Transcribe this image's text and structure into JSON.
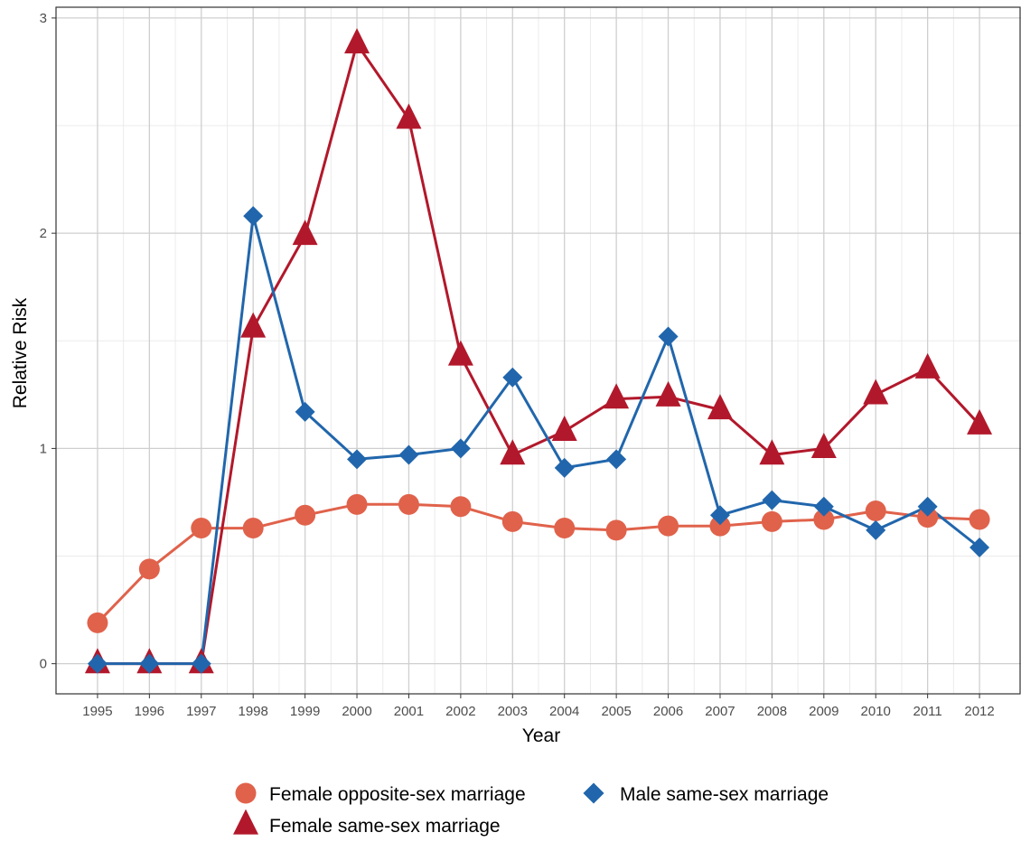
{
  "chart_data": {
    "type": "line",
    "xlabel": "Year",
    "ylabel": "Relative Risk",
    "x": [
      1995,
      1996,
      1997,
      1998,
      1999,
      2000,
      2001,
      2002,
      2003,
      2004,
      2005,
      2006,
      2007,
      2008,
      2009,
      2010,
      2011,
      2012
    ],
    "x_tick_labels": [
      "1995",
      "1996",
      "1997",
      "1998",
      "1999",
      "2000",
      "2001",
      "2002",
      "2003",
      "2004",
      "2005",
      "2006",
      "2007",
      "2008",
      "2009",
      "2010",
      "2011",
      "2012"
    ],
    "y_tick_labels": [
      "0",
      "1",
      "2",
      "3"
    ],
    "ylim": [
      -0.14,
      3.05
    ],
    "xlim": [
      1994.2,
      2012.8
    ],
    "grid": true,
    "legend_position": "bottom",
    "series": [
      {
        "name": "Female opposite-sex marriage",
        "marker": "circle",
        "color": "#e0624b",
        "values": [
          0.19,
          0.44,
          0.63,
          0.63,
          0.69,
          0.74,
          0.74,
          0.73,
          0.66,
          0.63,
          0.62,
          0.64,
          0.64,
          0.66,
          0.67,
          0.71,
          0.68,
          0.67
        ]
      },
      {
        "name": "Female same-sex marriage",
        "marker": "triangle",
        "color": "#b2182b",
        "values": [
          0.0,
          0.0,
          0.0,
          1.56,
          1.99,
          2.88,
          2.53,
          1.43,
          0.97,
          1.08,
          1.23,
          1.24,
          1.18,
          0.97,
          1.0,
          1.25,
          1.37,
          1.11
        ]
      },
      {
        "name": "Male same-sex marriage",
        "marker": "diamond",
        "color": "#2166ac",
        "values": [
          0.0,
          0.0,
          0.0,
          2.08,
          1.17,
          0.95,
          0.97,
          1.0,
          1.33,
          0.91,
          0.95,
          1.52,
          0.69,
          0.76,
          0.73,
          0.62,
          0.73,
          0.54
        ]
      }
    ]
  }
}
